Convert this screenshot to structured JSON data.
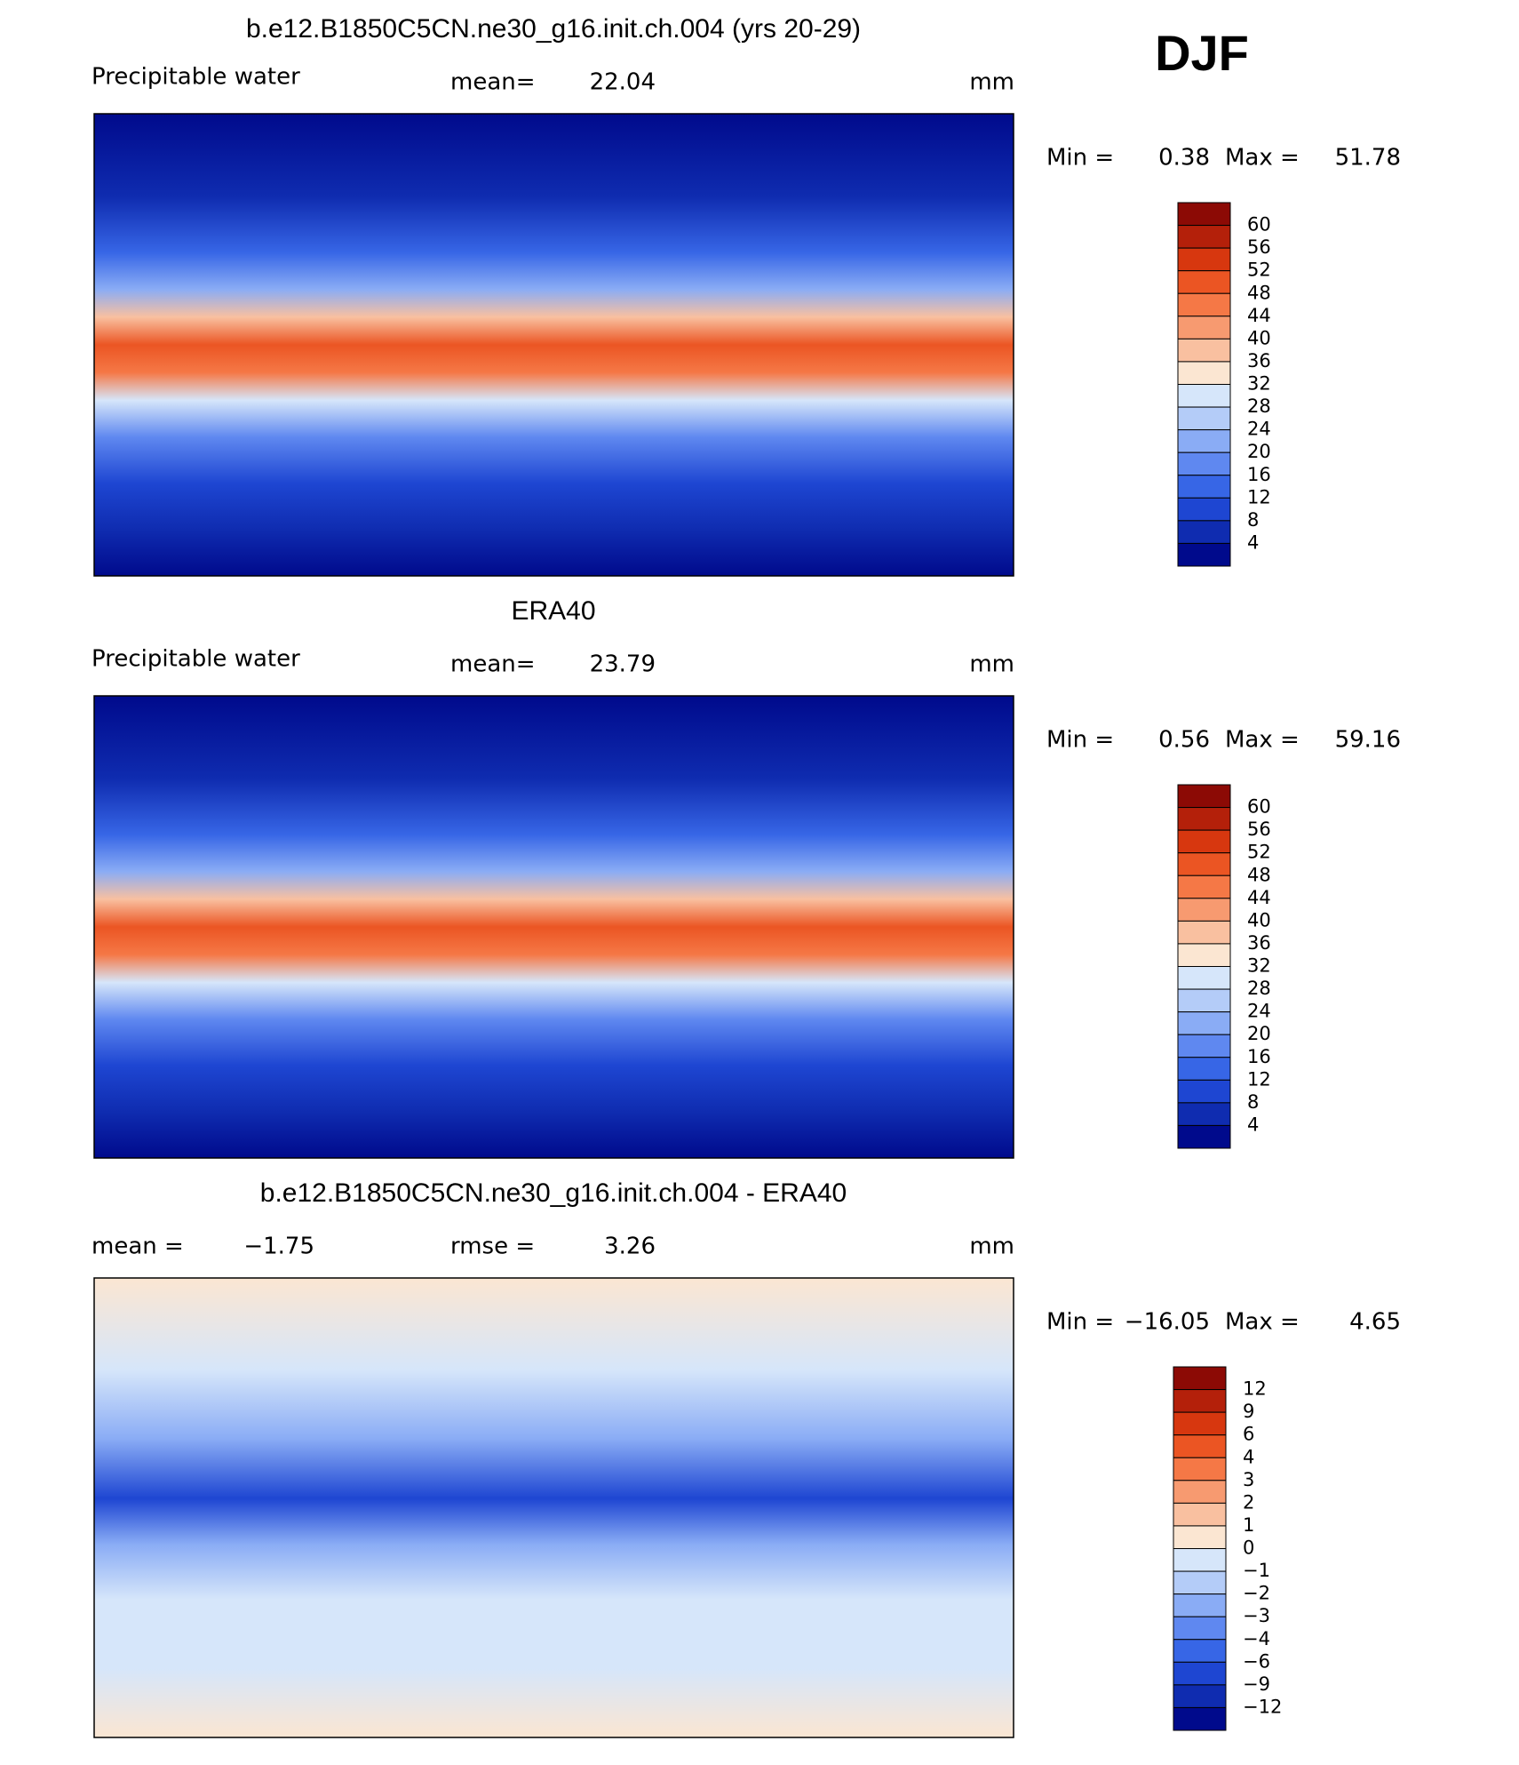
{
  "season": "DJF",
  "panels": [
    {
      "title": "b.e12.B1850C5CN.ne30_g16.init.ch.004 (yrs 20-29)",
      "left_label": "Precipitable  water",
      "center_label": "mean=",
      "center_value": "22.04",
      "units": "mm",
      "min_label": "Min  =",
      "min": "0.38",
      "max_label": "Max  =",
      "max": "51.78",
      "colorbar": {
        "labels": [
          "60",
          "56",
          "52",
          "48",
          "44",
          "40",
          "36",
          "32",
          "28",
          "24",
          "20",
          "16",
          "12",
          "8",
          "4"
        ],
        "colors": [
          "#8c0a05",
          "#b4200a",
          "#d7370f",
          "#eb5523",
          "#f57846",
          "#f79a70",
          "#f9c0a0",
          "#fbe6d2",
          "#d6e6fa",
          "#b4ccf8",
          "#8aacf5",
          "#5f88f0",
          "#3766e6",
          "#1e46d2",
          "#0f2cb0",
          "#000a8c"
        ]
      }
    },
    {
      "title": "ERA40",
      "left_label": "Precipitable  water",
      "center_label": "mean=",
      "center_value": "23.79",
      "units": "mm",
      "min_label": "Min  =",
      "min": "0.56",
      "max_label": "Max  =",
      "max": "59.16",
      "colorbar": {
        "labels": [
          "60",
          "56",
          "52",
          "48",
          "44",
          "40",
          "36",
          "32",
          "28",
          "24",
          "20",
          "16",
          "12",
          "8",
          "4"
        ],
        "colors": [
          "#8c0a05",
          "#b4200a",
          "#d7370f",
          "#eb5523",
          "#f57846",
          "#f79a70",
          "#f9c0a0",
          "#fbe6d2",
          "#d6e6fa",
          "#b4ccf8",
          "#8aacf5",
          "#5f88f0",
          "#3766e6",
          "#1e46d2",
          "#0f2cb0",
          "#000a8c"
        ]
      }
    },
    {
      "title": "b.e12.B1850C5CN.ne30_g16.init.ch.004 - ERA40",
      "left_label": "mean  =",
      "left_value": "−1.75",
      "center_label": "rmse  =",
      "center_value": "3.26",
      "units": "mm",
      "min_label": "Min  =",
      "min": "−16.05",
      "max_label": "Max  =",
      "max": "4.65",
      "colorbar": {
        "labels": [
          "12",
          "9",
          "6",
          "4",
          "3",
          "2",
          "1",
          "0",
          "−1",
          "−2",
          "−3",
          "−4",
          "−6",
          "−9",
          "−12"
        ],
        "colors": [
          "#8c0a05",
          "#b4200a",
          "#d7370f",
          "#eb5523",
          "#f57846",
          "#f79a70",
          "#f9c0a0",
          "#fbe6d2",
          "#d6e6fa",
          "#b4ccf8",
          "#8aacf5",
          "#5f88f0",
          "#3766e6",
          "#1e46d2",
          "#0f2cb0",
          "#000a8c"
        ]
      }
    }
  ]
}
